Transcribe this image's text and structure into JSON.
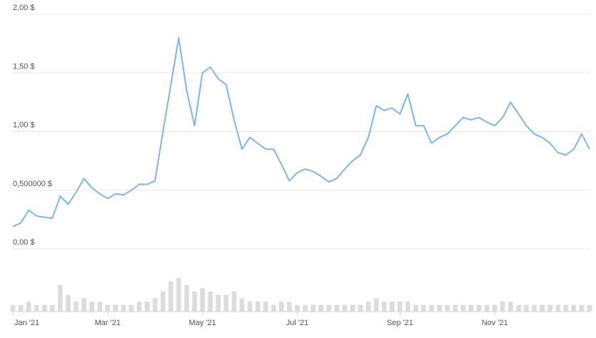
{
  "chart_data": {
    "type": "line",
    "categories": [
      "Jan '21",
      null,
      null,
      null,
      null,
      null,
      null,
      null,
      null,
      null,
      null,
      null,
      "Mar '21",
      null,
      null,
      null,
      null,
      null,
      null,
      null,
      null,
      null,
      null,
      null,
      "May '21",
      null,
      null,
      null,
      null,
      null,
      null,
      null,
      null,
      null,
      null,
      null,
      "Jul '21",
      null,
      null,
      null,
      null,
      null,
      null,
      null,
      null,
      null,
      null,
      null,
      null,
      "Sep '21",
      null,
      null,
      null,
      null,
      null,
      null,
      null,
      null,
      null,
      null,
      null,
      "Nov '21",
      null,
      null,
      null,
      null,
      null,
      null,
      null,
      null,
      null,
      null,
      null,
      null
    ],
    "series": [
      {
        "color": "#7cb5ec",
        "values": [
          0.19,
          0.22,
          0.33,
          0.28,
          0.27,
          0.26,
          0.45,
          0.38,
          0.48,
          0.6,
          0.52,
          0.47,
          0.43,
          0.47,
          0.46,
          0.5,
          0.55,
          0.55,
          0.58,
          1.0,
          1.4,
          1.8,
          1.35,
          1.05,
          1.5,
          1.55,
          1.45,
          1.4,
          1.1,
          0.85,
          0.95,
          0.9,
          0.85,
          0.85,
          0.72,
          0.58,
          0.65,
          0.68,
          0.66,
          0.62,
          0.57,
          0.6,
          0.68,
          0.75,
          0.8,
          0.95,
          1.22,
          1.18,
          1.2,
          1.15,
          1.32,
          1.05,
          1.05,
          0.9,
          0.95,
          0.98,
          1.05,
          1.12,
          1.1,
          1.12,
          1.08,
          1.05,
          1.12,
          1.25,
          1.15,
          1.05,
          0.98,
          0.95,
          0.9,
          0.82,
          0.8,
          0.85,
          0.98,
          0.85
        ]
      }
    ],
    "volume": {
      "color": "#dcdcdc",
      "values": [
        2,
        2,
        3,
        2,
        2,
        2,
        8,
        5,
        3,
        4,
        3,
        3,
        2,
        2,
        2,
        2,
        3,
        3,
        4,
        6,
        9,
        10,
        8,
        6,
        7,
        6,
        5,
        5,
        6,
        4,
        3,
        3,
        3,
        2,
        3,
        3,
        2,
        2,
        2,
        2,
        2,
        2,
        2,
        2,
        2,
        3,
        4,
        3,
        3,
        3,
        3,
        2,
        2,
        2,
        2,
        2,
        2,
        2,
        2,
        2,
        2,
        2,
        3,
        3,
        2,
        2,
        2,
        2,
        2,
        2,
        2,
        2,
        2,
        2
      ]
    },
    "ylim": [
      0,
      2
    ],
    "yticks": [
      {
        "value": 0,
        "label": "0,00 $"
      },
      {
        "value": 0.5,
        "label": "0,500000 $"
      },
      {
        "value": 1,
        "label": "1,00 $"
      },
      {
        "value": 1.5,
        "label": "1,50 $"
      },
      {
        "value": 2,
        "label": "2,00 $"
      }
    ],
    "grid": true
  }
}
